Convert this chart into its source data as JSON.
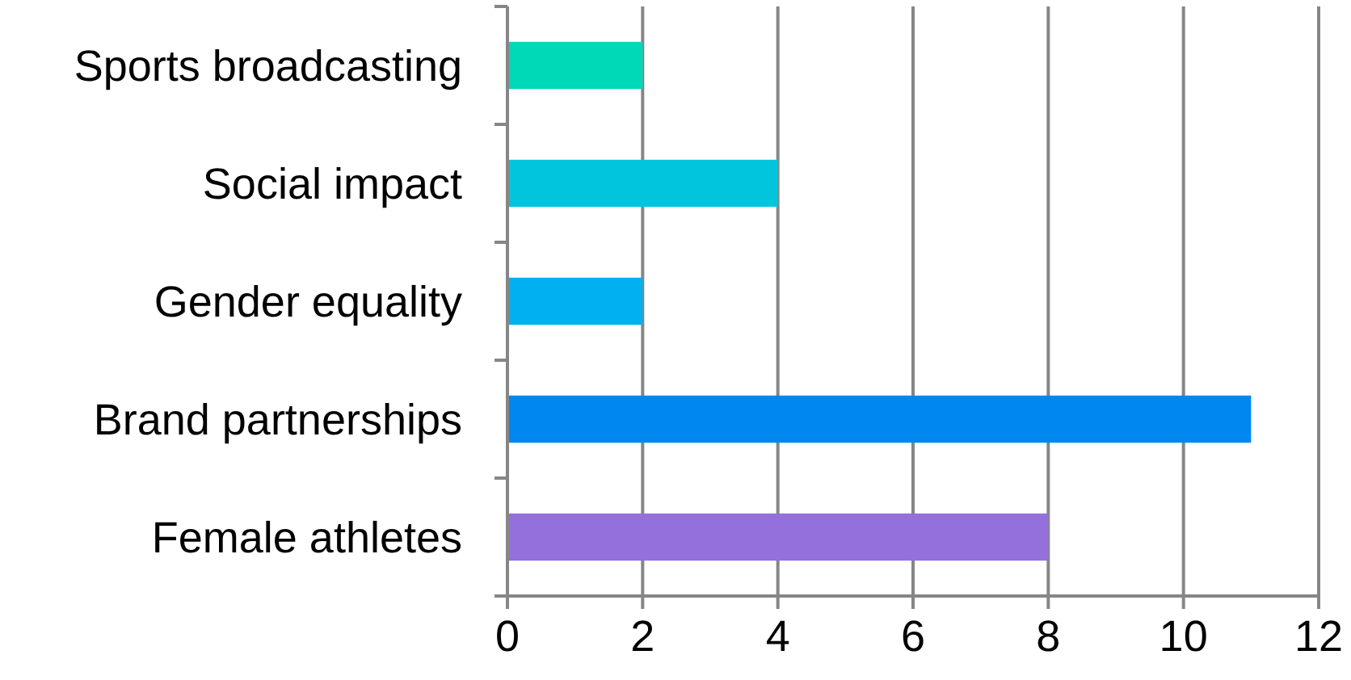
{
  "chart_data": {
    "type": "bar",
    "orientation": "horizontal",
    "categories": [
      "Sports broadcasting",
      "Social impact",
      "Gender equality",
      "Brand partnerships",
      "Female athletes"
    ],
    "values": [
      2,
      4,
      2,
      11,
      8
    ],
    "colors": [
      "#00d9b8",
      "#00c5dc",
      "#00b0f0",
      "#0088f0",
      "#9370db"
    ],
    "xlim": [
      0,
      12
    ],
    "xticks": [
      0,
      2,
      4,
      6,
      8,
      10,
      12
    ],
    "grid": "x"
  }
}
